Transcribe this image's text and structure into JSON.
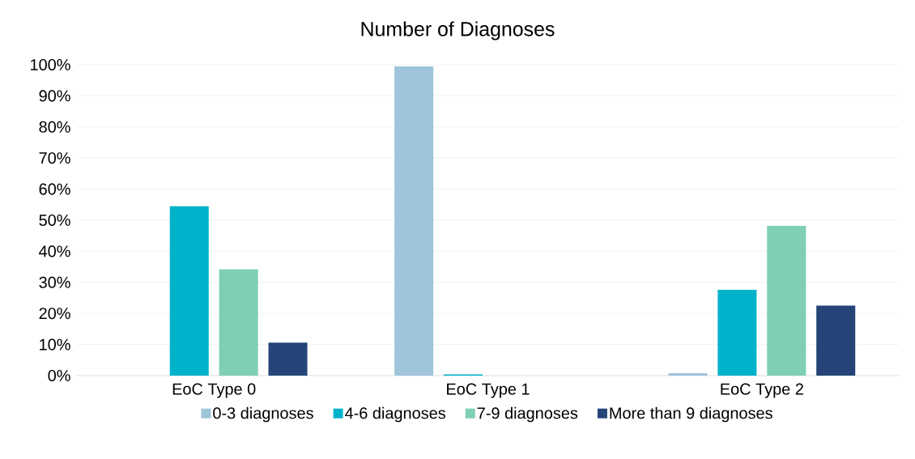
{
  "chart_data": {
    "type": "bar",
    "title": "Number of Diagnoses",
    "categories": [
      "EoC Type 0",
      "EoC  Type 1",
      "EoC  Type 2"
    ],
    "series": [
      {
        "name": "0-3 diagnoses",
        "color": "#9ec5d9",
        "values": [
          0,
          99.5,
          0.8
        ]
      },
      {
        "name": "4-6 diagnoses",
        "color": "#00b3cb",
        "values": [
          54.5,
          0.4,
          27.6
        ]
      },
      {
        "name": "7-9 diagnoses",
        "color": "#7fcfb4",
        "values": [
          34.2,
          0,
          48.2
        ]
      },
      {
        "name": "More than 9 diagnoses",
        "color": "#264478",
        "values": [
          10.6,
          0,
          22.5
        ]
      }
    ],
    "ylim": [
      0,
      100
    ],
    "yticks": [
      {
        "value": 0,
        "label": "0%"
      },
      {
        "value": 10,
        "label": "10%"
      },
      {
        "value": 20,
        "label": "20%"
      },
      {
        "value": 30,
        "label": "30%"
      },
      {
        "value": 40,
        "label": "40%"
      },
      {
        "value": 50,
        "label": "50%"
      },
      {
        "value": 60,
        "label": "60%"
      },
      {
        "value": 70,
        "label": "70%"
      },
      {
        "value": 80,
        "label": "80%"
      },
      {
        "value": 90,
        "label": "90%"
      },
      {
        "value": 100,
        "label": "100%"
      }
    ],
    "grid": "y",
    "legend": "bottom"
  }
}
